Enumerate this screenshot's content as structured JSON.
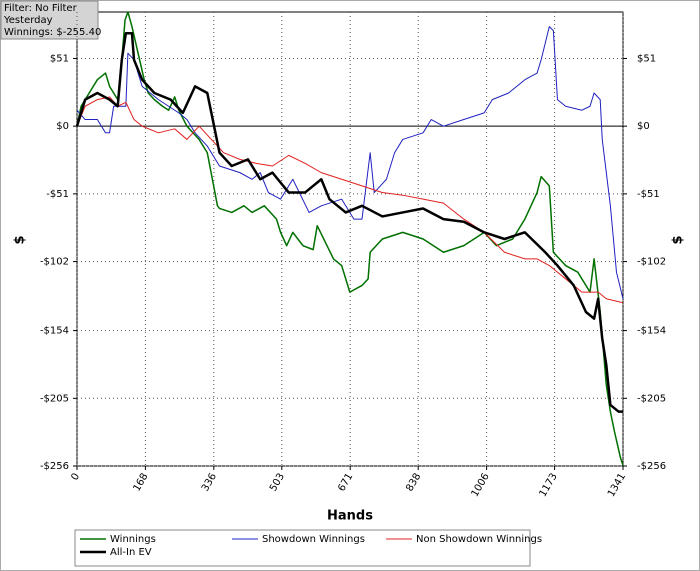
{
  "chart_data": {
    "type": "line",
    "annotations": [
      "Filter: No Filter",
      "Yesterday",
      "Winnings: $-255.40"
    ],
    "x_label": "Hands",
    "y_label": "$",
    "xlim": [
      0,
      1341
    ],
    "xticks": [
      0,
      168,
      336,
      503,
      671,
      838,
      1006,
      1173,
      1341
    ],
    "ylim": [
      -256,
      86
    ],
    "yticks": [
      {
        "value": -256,
        "label": "-$256"
      },
      {
        "value": -205,
        "label": "-$205"
      },
      {
        "value": -154,
        "label": "-$154"
      },
      {
        "value": -102,
        "label": "-$102"
      },
      {
        "value": -51,
        "label": "-$51"
      },
      {
        "value": 0,
        "label": "$0"
      },
      {
        "value": 51,
        "label": "$51"
      }
    ],
    "grid": true,
    "series": [
      {
        "name": "Winnings",
        "color": "#007000",
        "line_width": 1.5,
        "x": [
          0,
          10,
          30,
          50,
          70,
          80,
          100,
          110,
          118,
          125,
          135,
          150,
          165,
          175,
          190,
          210,
          225,
          240,
          250,
          270,
          300,
          320,
          345,
          350,
          380,
          410,
          430,
          460,
          490,
          500,
          515,
          530,
          555,
          580,
          590,
          630,
          650,
          670,
          700,
          715,
          720,
          750,
          800,
          850,
          900,
          950,
          1000,
          1030,
          1070,
          1100,
          1130,
          1140,
          1160,
          1170,
          1200,
          1230,
          1260,
          1270,
          1285,
          1300,
          1310,
          1320,
          1335,
          1341
        ],
        "values": [
          0,
          15,
          25,
          35,
          40,
          30,
          20,
          50,
          80,
          86,
          75,
          55,
          35,
          25,
          20,
          15,
          12,
          22,
          12,
          0,
          -10,
          -20,
          -60,
          -62,
          -65,
          -60,
          -65,
          -60,
          -70,
          -80,
          -90,
          -80,
          -90,
          -93,
          -75,
          -100,
          -105,
          -125,
          -120,
          -115,
          -95,
          -85,
          -80,
          -85,
          -95,
          -90,
          -80,
          -90,
          -85,
          -70,
          -50,
          -38,
          -45,
          -95,
          -105,
          -110,
          -125,
          -100,
          -140,
          -195,
          -215,
          -230,
          -250,
          -255.4
        ]
      },
      {
        "name": "Showdown Winnings",
        "color": "#2020c0",
        "line_width": 1,
        "x": [
          0,
          20,
          50,
          70,
          80,
          90,
          120,
          125,
          140,
          160,
          200,
          250,
          270,
          290,
          320,
          350,
          400,
          430,
          450,
          470,
          500,
          530,
          570,
          600,
          650,
          680,
          700,
          720,
          730,
          760,
          780,
          800,
          850,
          870,
          900,
          950,
          1000,
          1020,
          1060,
          1100,
          1130,
          1140,
          1160,
          1170,
          1180,
          1200,
          1240,
          1260,
          1270,
          1285,
          1290,
          1310,
          1325,
          1341
        ],
        "values": [
          12,
          5,
          5,
          -5,
          -5,
          15,
          15,
          55,
          50,
          30,
          20,
          10,
          5,
          -5,
          -15,
          -30,
          -35,
          -40,
          -35,
          -50,
          -55,
          -40,
          -65,
          -60,
          -55,
          -70,
          -70,
          -20,
          -50,
          -40,
          -20,
          -10,
          -5,
          5,
          0,
          5,
          10,
          20,
          25,
          35,
          40,
          50,
          75,
          72,
          20,
          15,
          12,
          15,
          25,
          20,
          -10,
          -60,
          -110,
          -130
        ]
      },
      {
        "name": "Non Showdown Winnings",
        "color": "#e02020",
        "line_width": 1,
        "x": [
          0,
          20,
          50,
          80,
          100,
          120,
          140,
          160,
          200,
          240,
          270,
          300,
          330,
          360,
          400,
          440,
          480,
          520,
          560,
          600,
          650,
          700,
          750,
          800,
          850,
          900,
          950,
          1000,
          1050,
          1100,
          1130,
          1160,
          1200,
          1240,
          1280,
          1300,
          1341
        ],
        "values": [
          0,
          15,
          20,
          22,
          15,
          18,
          5,
          0,
          -5,
          -2,
          -10,
          0,
          -10,
          -20,
          -25,
          -28,
          -30,
          -22,
          -28,
          -35,
          -40,
          -45,
          -50,
          -52,
          -55,
          -58,
          -70,
          -80,
          -95,
          -100,
          -100,
          -105,
          -115,
          -125,
          -125,
          -130,
          -133
        ]
      },
      {
        "name": "All-In EV",
        "color": "#000000",
        "line_width": 2.5,
        "x": [
          0,
          20,
          50,
          80,
          100,
          110,
          120,
          135,
          140,
          160,
          190,
          230,
          260,
          290,
          320,
          340,
          350,
          380,
          420,
          450,
          480,
          520,
          560,
          600,
          620,
          660,
          700,
          750,
          800,
          850,
          900,
          950,
          1000,
          1050,
          1100,
          1150,
          1180,
          1220,
          1250,
          1270,
          1280,
          1290,
          1300,
          1310,
          1330,
          1341
        ],
        "values": [
          0,
          20,
          25,
          20,
          15,
          50,
          70,
          70,
          50,
          35,
          25,
          20,
          10,
          30,
          25,
          -5,
          -20,
          -30,
          -25,
          -40,
          -35,
          -50,
          -50,
          -40,
          -55,
          -65,
          -60,
          -68,
          -65,
          -62,
          -70,
          -72,
          -80,
          -85,
          -80,
          -95,
          -105,
          -120,
          -140,
          -145,
          -130,
          -160,
          -180,
          -210,
          -215,
          -215
        ]
      }
    ]
  }
}
